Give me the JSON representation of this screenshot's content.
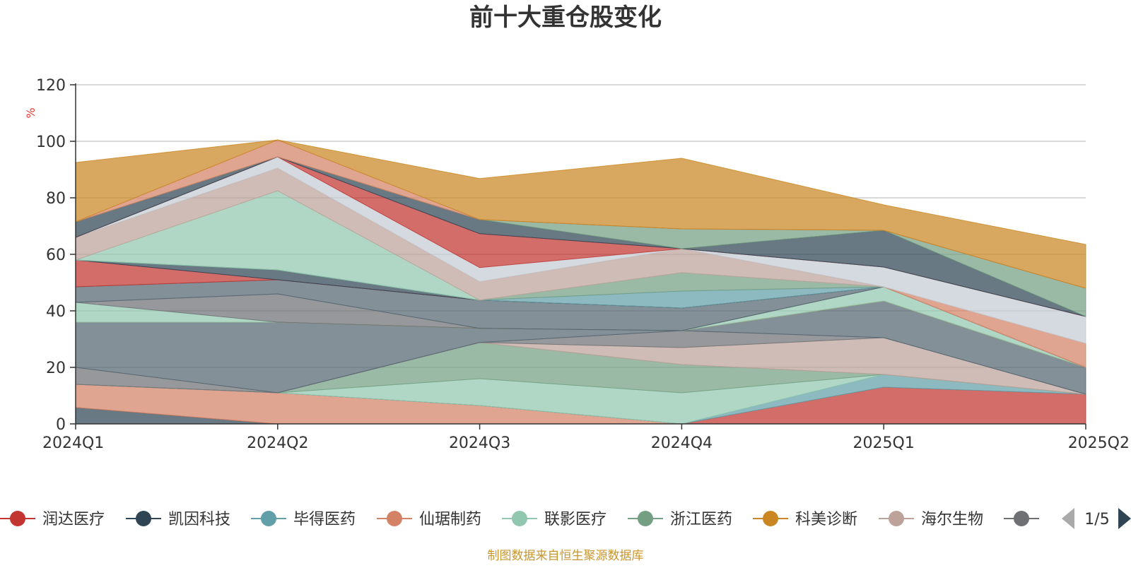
{
  "title": "前十大重仓股变化",
  "unit_label": "%",
  "source_text": "制图数据来自恒生聚源数据库",
  "legend": {
    "page_indicator": "1/5",
    "items": [
      {
        "label": "润达医疗",
        "color": "#c23531"
      },
      {
        "label": "凯因科技",
        "color": "#2f4554"
      },
      {
        "label": "毕得医药",
        "color": "#61a0a8"
      },
      {
        "label": "仙琚制药",
        "color": "#d48265"
      },
      {
        "label": "联影医疗",
        "color": "#91c7ae"
      },
      {
        "label": "浙江医药",
        "color": "#749f83"
      },
      {
        "label": "科美诊断",
        "color": "#ca8622"
      },
      {
        "label": "海尔生物",
        "color": "#bda29a"
      },
      {
        "label": "",
        "color": "#6e7074"
      }
    ]
  },
  "chart_data": {
    "type": "area",
    "stacked": true,
    "title": "前十大重仓股变化",
    "ylabel": "%",
    "x": [
      "2024Q1",
      "2024Q2",
      "2024Q3",
      "2024Q4",
      "2025Q1",
      "2025Q2"
    ],
    "ylim": [
      0,
      120
    ],
    "yticks": [
      0,
      20,
      40,
      60,
      80,
      100,
      120
    ],
    "grid": true,
    "legend_position": "bottom",
    "series": [
      {
        "color": "#2f4554",
        "values": [
          5.8,
          0,
          0,
          0,
          0,
          0
        ]
      },
      {
        "color": "#d48265",
        "values": [
          8.2,
          11,
          6.5,
          0,
          0,
          0
        ]
      },
      {
        "color": "#c23531",
        "values": [
          0,
          0,
          0,
          0,
          13,
          10.5
        ]
      },
      {
        "color": "#61a0a8",
        "values": [
          0,
          0,
          0,
          0,
          4.5,
          0
        ]
      },
      {
        "color": "#91c7ae",
        "values": [
          0,
          0,
          9.5,
          11,
          0,
          0
        ]
      },
      {
        "color": "#749f83",
        "values": [
          0,
          0,
          12.8,
          10,
          0,
          0
        ]
      },
      {
        "color": "#bda29a",
        "values": [
          0,
          0,
          0,
          6,
          13,
          0
        ]
      },
      {
        "color": "#6e7074",
        "values": [
          6,
          0,
          0,
          6,
          0,
          0
        ]
      },
      {
        "color": "#546570",
        "values": [
          16,
          25,
          5,
          0,
          13,
          9.5
        ]
      },
      {
        "color": "#ca8622",
        "values": [
          0,
          0,
          0,
          0,
          0,
          0
        ]
      },
      {
        "color": "#91c7ae",
        "values": [
          7,
          0,
          0,
          0,
          5,
          0
        ]
      },
      {
        "color": "#6e7074",
        "values": [
          0,
          10,
          0,
          0,
          0,
          0
        ]
      },
      {
        "color": "#546570",
        "values": [
          5.5,
          5,
          10,
          8,
          0,
          0
        ]
      },
      {
        "color": "#c23531",
        "values": [
          9.5,
          0,
          0,
          0,
          0,
          0
        ]
      },
      {
        "color": "#2f4554",
        "values": [
          0,
          3.5,
          0,
          0,
          0,
          0
        ]
      },
      {
        "color": "#61a0a8",
        "values": [
          0,
          0,
          0,
          6,
          0,
          0
        ]
      },
      {
        "color": "#749f83",
        "values": [
          0,
          0,
          0,
          6.5,
          0,
          0
        ]
      },
      {
        "color": "#91c7ae",
        "values": [
          0,
          28,
          0,
          0,
          0,
          0
        ]
      },
      {
        "color": "#bda29a",
        "values": [
          8,
          8,
          6.5,
          8.5,
          0,
          0
        ]
      },
      {
        "color": "#d48265",
        "values": [
          0,
          0,
          0,
          0,
          0,
          8.5
        ]
      },
      {
        "color": "#c4ccd3",
        "values": [
          0,
          4,
          5,
          0,
          7,
          9.5
        ]
      },
      {
        "color": "#c23531",
        "values": [
          0,
          0,
          12,
          0,
          0,
          0
        ]
      },
      {
        "color": "#2f4554",
        "values": [
          5.5,
          0,
          5,
          0,
          13,
          0
        ]
      },
      {
        "color": "#749f83",
        "values": [
          0,
          0,
          0,
          7,
          0,
          10
        ]
      },
      {
        "color": "#d48265",
        "values": [
          0,
          6,
          0,
          0,
          0,
          0
        ]
      },
      {
        "color": "#ca8622",
        "values": [
          21,
          0,
          14.5,
          25,
          9,
          15.5
        ]
      }
    ]
  }
}
